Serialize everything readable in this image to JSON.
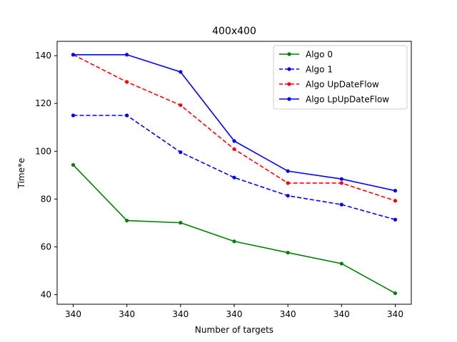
{
  "chart_data": {
    "type": "line",
    "title": "400x400",
    "xlabel": "Number of targets",
    "ylabel": "Time*e",
    "categories": [
      "340",
      "340",
      "340",
      "340",
      "340",
      "340",
      "340"
    ],
    "ylim": [
      36,
      146
    ],
    "yticks": [
      40,
      60,
      80,
      100,
      120,
      140
    ],
    "grid": false,
    "legend_position": "top-right",
    "series": [
      {
        "name": "Algo 0",
        "color": "#008000",
        "dashed": false,
        "values": [
          94.3,
          71.0,
          70.1,
          62.3,
          57.6,
          53.0,
          40.6
        ]
      },
      {
        "name": "Algo 1",
        "color": "#0000ff",
        "dashed": true,
        "values": [
          115.0,
          115.0,
          99.6,
          89.0,
          81.4,
          77.7,
          71.4
        ]
      },
      {
        "name": "Algo UpDateFlow",
        "color": "#ff0000",
        "dashed": true,
        "values": [
          140.4,
          129.0,
          119.3,
          100.9,
          86.7,
          86.7,
          79.3
        ]
      },
      {
        "name": "Algo LpUpDateFlow",
        "color": "#0000ff",
        "dashed": false,
        "values": [
          140.4,
          140.4,
          133.2,
          104.3,
          91.7,
          88.4,
          83.5
        ]
      }
    ]
  }
}
